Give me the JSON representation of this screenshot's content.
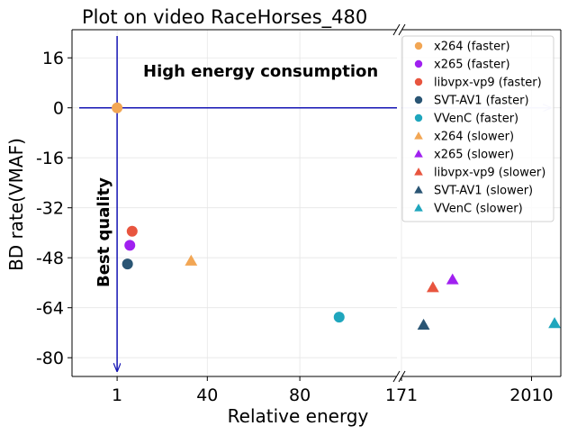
{
  "chart_data": {
    "type": "scatter",
    "title": "Plot on video RaceHorses_480",
    "xlabel": "Relative energy",
    "ylabel": "BD rate(VMAF)",
    "ylim": [
      -86,
      25
    ],
    "yticks": [
      16,
      0,
      -16,
      -32,
      -48,
      -64,
      -80
    ],
    "grid": true,
    "broken_x_axis": true,
    "x_segments": [
      {
        "xlim": [
          -18.5,
          122
        ],
        "ticks": [
          1,
          40,
          80
        ],
        "tick_labels": [
          "1",
          "40",
          "80"
        ]
      },
      {
        "xlim": [
          171,
          3500
        ],
        "ticks": [
          171,
          2010
        ],
        "tick_labels": [
          "171",
          "2010"
        ]
      }
    ],
    "annotations": {
      "high_energy": "High energy consumption",
      "best_quality": "Best quality"
    },
    "legend_position": "top-right",
    "reference_point": {
      "x": 1,
      "y": 0
    },
    "series": [
      {
        "name": "x264 (faster)",
        "marker": "circle",
        "color": "#f2a654",
        "points": [
          [
            1,
            0
          ]
        ]
      },
      {
        "name": "x265 (faster)",
        "marker": "circle",
        "color": "#a020f0",
        "points": [
          [
            6.5,
            -44
          ]
        ]
      },
      {
        "name": "libvpx-vp9 (faster)",
        "marker": "circle",
        "color": "#e8553f",
        "points": [
          [
            7.5,
            -39.5
          ]
        ]
      },
      {
        "name": "SVT-AV1 (faster)",
        "marker": "circle",
        "color": "#2a5574",
        "points": [
          [
            5.5,
            -50
          ]
        ]
      },
      {
        "name": "VVenC (faster)",
        "marker": "circle",
        "color": "#1fa6bd",
        "points": [
          [
            97,
            -67
          ]
        ]
      },
      {
        "name": "x264 (slower)",
        "marker": "triangle",
        "color": "#f2a654",
        "points": [
          [
            33,
            -49
          ]
        ]
      },
      {
        "name": "x265 (slower)",
        "marker": "triangle",
        "color": "#a020f0",
        "points": [
          [
            450,
            -55
          ]
        ]
      },
      {
        "name": "libvpx-vp9 (slower)",
        "marker": "triangle",
        "color": "#e8553f",
        "points": [
          [
            310,
            -57.5
          ]
        ]
      },
      {
        "name": "SVT-AV1 (slower)",
        "marker": "triangle",
        "color": "#2a5574",
        "points": [
          [
            260,
            -69.5
          ]
        ]
      },
      {
        "name": "VVenC (slower)",
        "marker": "triangle",
        "color": "#1fa6bd",
        "points": [
          [
            3110,
            -69
          ]
        ]
      }
    ],
    "colors": {
      "guide": "#1414b4",
      "axis": "#000000",
      "grid": "#e6e6e6"
    }
  }
}
